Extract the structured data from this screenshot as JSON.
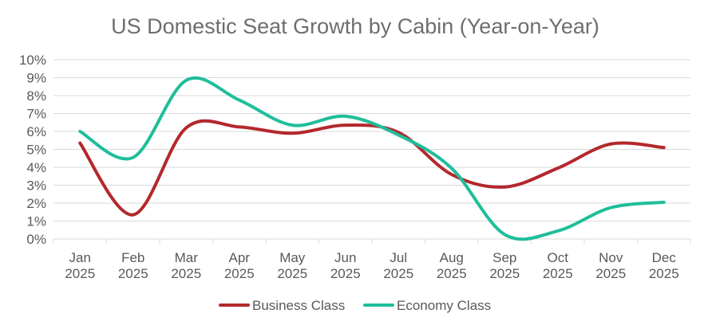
{
  "chart_data": {
    "type": "line",
    "title": "US Domestic Seat Growth by Cabin (Year-on-Year)",
    "xlabel": "",
    "ylabel": "",
    "ylim": [
      0,
      10
    ],
    "y_ticks": [
      "0%",
      "1%",
      "2%",
      "3%",
      "4%",
      "5%",
      "6%",
      "7%",
      "8%",
      "9%",
      "10%"
    ],
    "grid": true,
    "legend_position": "bottom",
    "categories": [
      [
        "Jan",
        "2025"
      ],
      [
        "Feb",
        "2025"
      ],
      [
        "Mar",
        "2025"
      ],
      [
        "Apr",
        "2025"
      ],
      [
        "May",
        "2025"
      ],
      [
        "Jun",
        "2025"
      ],
      [
        "Jul",
        "2025"
      ],
      [
        "Aug",
        "2025"
      ],
      [
        "Sep",
        "2025"
      ],
      [
        "Oct",
        "2025"
      ],
      [
        "Nov",
        "2025"
      ],
      [
        "Dec",
        "2025"
      ]
    ],
    "series": [
      {
        "name": "Business Class",
        "color": "#b3282d",
        "values": [
          5.35,
          1.35,
          6.2,
          6.25,
          5.9,
          6.35,
          5.95,
          3.6,
          2.9,
          3.95,
          5.3,
          5.1
        ]
      },
      {
        "name": "Economy Class",
        "color": "#1fbe9a",
        "values": [
          6.0,
          4.55,
          8.85,
          7.75,
          6.35,
          6.85,
          5.8,
          3.95,
          0.25,
          0.45,
          1.75,
          2.05
        ]
      }
    ]
  }
}
